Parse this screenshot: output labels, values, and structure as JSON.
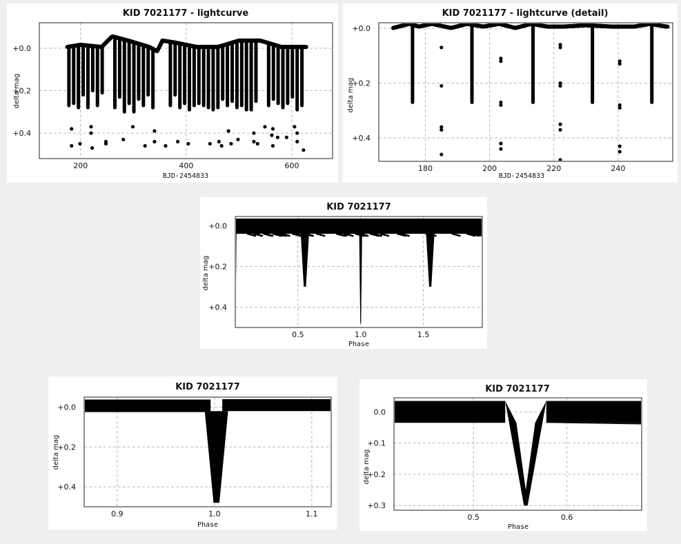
{
  "chart_data": [
    {
      "type": "scatter",
      "title": "KID 7021177 - lightcurve",
      "xlabel": "BJD-2454833",
      "ylabel": "delta mag",
      "xlim": [
        122,
        677
      ],
      "ylim": [
        -0.12,
        0.52
      ],
      "xticks": [
        "200",
        "400",
        "600"
      ],
      "xtick_values": [
        200,
        400,
        600
      ],
      "yticks": [
        "+0.0",
        "+0.2",
        "+0.4"
      ],
      "ytick_values": [
        0.0,
        0.2,
        0.4
      ],
      "grid": true,
      "series": [
        {
          "baseline": [
            [
              175,
              0.0
            ],
            [
              200,
              -0.01
            ],
            [
              240,
              0.0
            ],
            [
              260,
              -0.05
            ],
            [
              290,
              -0.03
            ],
            [
              330,
              0.0
            ],
            [
              345,
              0.02
            ],
            [
              355,
              -0.03
            ],
            [
              380,
              -0.02
            ],
            [
              420,
              0.0
            ],
            [
              460,
              0.0
            ],
            [
              500,
              -0.03
            ],
            [
              540,
              -0.03
            ],
            [
              580,
              0.0
            ],
            [
              625,
              0.0
            ]
          ],
          "eclipse_times": [
            178,
            187,
            196,
            205,
            214,
            223,
            232,
            241,
            265,
            274,
            283,
            292,
            301,
            310,
            319,
            328,
            337,
            370,
            379,
            388,
            397,
            406,
            415,
            424,
            433,
            442,
            451,
            460,
            469,
            478,
            487,
            496,
            505,
            514,
            523,
            532,
            556,
            565,
            574,
            583,
            592,
            601,
            610,
            619
          ],
          "eclipse_depths": [
            0.27,
            0.26,
            0.28,
            0.22,
            0.28,
            0.2,
            0.27,
            0.21,
            0.28,
            0.23,
            0.3,
            0.26,
            0.3,
            0.24,
            0.27,
            0.22,
            0.28,
            0.27,
            0.22,
            0.28,
            0.26,
            0.29,
            0.27,
            0.26,
            0.27,
            0.28,
            0.29,
            0.28,
            0.24,
            0.27,
            0.25,
            0.28,
            0.27,
            0.29,
            0.29,
            0.25,
            0.27,
            0.24,
            0.26,
            0.28,
            0.26,
            0.23,
            0.29,
            0.27
          ],
          "deep_points": [
            [
              183,
              0.38
            ],
            [
              183,
              0.46
            ],
            [
              199,
              0.45
            ],
            [
              220,
              0.37
            ],
            [
              220,
              0.4
            ],
            [
              222,
              0.47
            ],
            [
              248,
              0.44
            ],
            [
              248,
              0.45
            ],
            [
              281,
              0.43
            ],
            [
              299,
              0.37
            ],
            [
              322,
              0.46
            ],
            [
              340,
              0.39
            ],
            [
              340,
              0.44
            ],
            [
              361,
              0.46
            ],
            [
              384,
              0.44
            ],
            [
              404,
              0.45
            ],
            [
              445,
              0.45
            ],
            [
              462,
              0.44
            ],
            [
              467,
              0.46
            ],
            [
              480,
              0.39
            ],
            [
              485,
              0.45
            ],
            [
              498,
              0.43
            ],
            [
              528,
              0.4
            ],
            [
              528,
              0.44
            ],
            [
              535,
              0.45
            ],
            [
              549,
              0.37
            ],
            [
              564,
              0.38
            ],
            [
              562,
              0.41
            ],
            [
              564,
              0.46
            ],
            [
              573,
              0.42
            ],
            [
              590,
              0.42
            ],
            [
              605,
              0.37
            ],
            [
              610,
              0.4
            ],
            [
              610,
              0.44
            ],
            [
              622,
              0.48
            ]
          ]
        }
      ]
    },
    {
      "type": "scatter",
      "title": "KID 7021177 - lightcurve (detail)",
      "xlabel": "BJD-2454833",
      "ylabel": "delta mag",
      "xlim": [
        165.5,
        257
      ],
      "ylim": [
        -0.02,
        0.485
      ],
      "xticks": [
        "180",
        "200",
        "220",
        "240"
      ],
      "xtick_values": [
        180,
        200,
        220,
        240
      ],
      "yticks": [
        "+0.0",
        "+0.2",
        "+0.4"
      ],
      "ytick_values": [
        0.0,
        0.2,
        0.4
      ],
      "grid": true,
      "series": [
        {
          "baseline": [
            [
              170,
              0.005
            ],
            [
              175,
              -0.01
            ],
            [
              178,
              0.0
            ],
            [
              182,
              -0.01
            ],
            [
              188,
              0.005
            ],
            [
              193,
              -0.01
            ],
            [
              198,
              0.0
            ],
            [
              203,
              -0.01
            ],
            [
              208,
              0.005
            ],
            [
              213,
              -0.01
            ],
            [
              218,
              0.0
            ],
            [
              223,
              0.0
            ],
            [
              230,
              -0.005
            ],
            [
              238,
              0.0
            ],
            [
              245,
              0.0
            ],
            [
              250,
              -0.01
            ],
            [
              255,
              0.0
            ]
          ],
          "eclipse_times": [
            176,
            194.5,
            213.5,
            232,
            250.5
          ],
          "eclipse_depths": [
            0.27,
            0.27,
            0.27,
            0.27,
            0.27
          ],
          "deep_points": [
            [
              185,
              0.07
            ],
            [
              185,
              0.21
            ],
            [
              185,
              0.36
            ],
            [
              185,
              0.37
            ],
            [
              185,
              0.46
            ],
            [
              203.5,
              0.11
            ],
            [
              203.5,
              0.12
            ],
            [
              203.5,
              0.27
            ],
            [
              203.5,
              0.28
            ],
            [
              203.5,
              0.42
            ],
            [
              203.5,
              0.44
            ],
            [
              222,
              0.06
            ],
            [
              222,
              0.07
            ],
            [
              222,
              0.2
            ],
            [
              222,
              0.21
            ],
            [
              222,
              0.35
            ],
            [
              222,
              0.37
            ],
            [
              222,
              0.48
            ],
            [
              240.5,
              0.12
            ],
            [
              240.5,
              0.13
            ],
            [
              240.5,
              0.28
            ],
            [
              240.5,
              0.29
            ],
            [
              240.5,
              0.43
            ],
            [
              240.5,
              0.45
            ]
          ]
        }
      ]
    },
    {
      "type": "scatter",
      "title": "KID 7021177",
      "xlabel": "Phase",
      "ylabel": "delta mag",
      "xlim": [
        0.0,
        1.97
      ],
      "ylim": [
        -0.045,
        0.5
      ],
      "xticks": [
        "0.5",
        "1.0",
        "1.5"
      ],
      "xtick_values": [
        0.5,
        1.0,
        1.5
      ],
      "yticks": [
        "+0.0",
        "+0.2",
        "+0.4"
      ],
      "ytick_values": [
        0.0,
        0.2,
        0.4
      ],
      "grid": true,
      "series": [
        {
          "band": [
            -0.035,
            0.04
          ],
          "eclipses": [
            {
              "phase": 0.0,
              "depth": 0.48,
              "width": 0.01
            },
            {
              "phase": 0.555,
              "depth": 0.3,
              "width": 0.035
            },
            {
              "phase": 1.0,
              "depth": 0.48,
              "width": 0.012
            },
            {
              "phase": 1.555,
              "depth": 0.3,
              "width": 0.035
            }
          ]
        }
      ]
    },
    {
      "type": "scatter",
      "title": "KID 7021177",
      "xlabel": "Phase",
      "ylabel": "delta mag",
      "xlim": [
        0.866,
        1.12
      ],
      "ylim": [
        -0.05,
        0.5
      ],
      "xticks": [
        "0.9",
        "1.0",
        "1.1"
      ],
      "xtick_values": [
        0.9,
        1.0,
        1.1
      ],
      "yticks": [
        "+0.0",
        "+0.2",
        "+0.4"
      ],
      "ytick_values": [
        0.0,
        0.2,
        0.4
      ],
      "grid": true,
      "series": [
        {
          "band_left": [
            -0.038,
            0.025
          ],
          "band_right": [
            -0.04,
            0.02
          ],
          "eclipse": {
            "phase": 1.002,
            "depth": 0.48,
            "width": 0.012
          }
        }
      ]
    },
    {
      "type": "scatter",
      "title": "KID 7021177",
      "xlabel": "Phase",
      "ylabel": "delta mag",
      "xlim": [
        0.415,
        0.68
      ],
      "ylim": [
        -0.045,
        0.315
      ],
      "xticks": [
        "0.5",
        "0.6"
      ],
      "xtick_values": [
        0.5,
        0.6
      ],
      "yticks": [
        "0.0",
        "+0.1",
        "+0.2",
        "+0.3"
      ],
      "ytick_values": [
        0.0,
        0.1,
        0.2,
        0.3
      ],
      "grid": true,
      "series": [
        {
          "band_left": [
            -0.035,
            0.035
          ],
          "band_right": [
            -0.035,
            0.035
          ],
          "lower_tail": [
            [
              0.57,
              0.01
            ],
            [
              0.68,
              0.04
            ]
          ],
          "eclipse": {
            "phase": 0.556,
            "depth": 0.3,
            "half_width": 0.022
          }
        }
      ]
    }
  ]
}
